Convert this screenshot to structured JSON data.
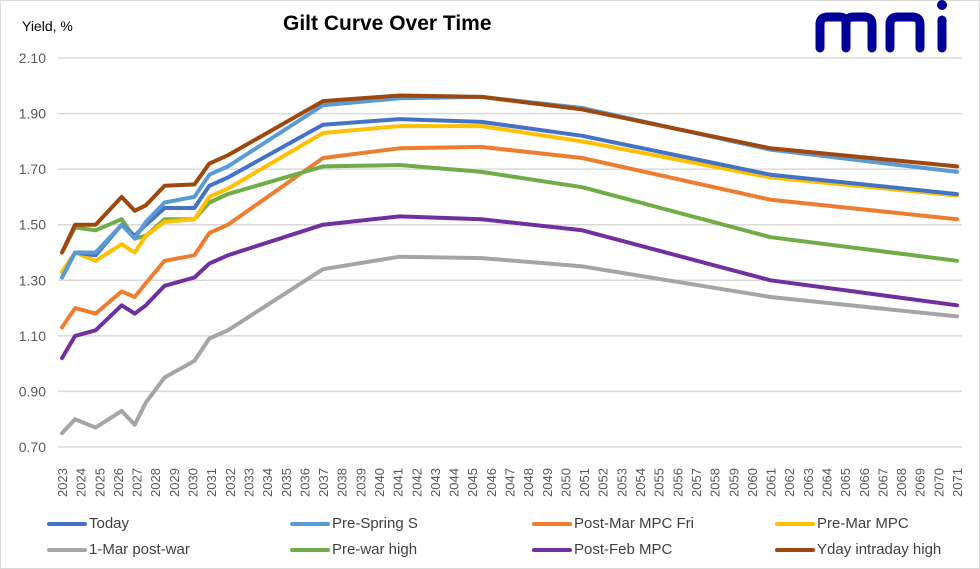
{
  "chart_data": {
    "type": "line",
    "title": "Gilt Curve Over Time",
    "ylabel": "Yield, %",
    "xlabel": "",
    "ylim": [
      0.7,
      2.1
    ],
    "yticks": [
      "2.10",
      "1.90",
      "1.70",
      "1.50",
      "1.30",
      "1.10",
      "0.90",
      "0.70"
    ],
    "ytick_values": [
      2.1,
      1.9,
      1.7,
      1.5,
      1.3,
      1.1,
      0.9,
      0.7
    ],
    "xlim": [
      2023,
      2071
    ],
    "xtick_labels": [
      "2023",
      "2024",
      "2025",
      "2026",
      "2027",
      "2028",
      "2029",
      "2030",
      "2031",
      "2032",
      "2033",
      "2034",
      "2035",
      "2036",
      "2037",
      "2038",
      "2039",
      "2040",
      "2041",
      "2042",
      "2043",
      "2044",
      "2045",
      "2046",
      "2047",
      "2048",
      "2049",
      "2050",
      "2051",
      "2052",
      "2053",
      "2054",
      "2055",
      "2056",
      "2057",
      "2058",
      "2059",
      "2060",
      "2061",
      "2062",
      "2063",
      "2064",
      "2065",
      "2066",
      "2067",
      "2068",
      "2069",
      "2070",
      "2071"
    ],
    "grid": "horizontal",
    "legend_position": "bottom",
    "x": [
      2023.0,
      2023.7,
      2024.8,
      2026.2,
      2026.9,
      2027.5,
      2028.5,
      2030.1,
      2030.9,
      2031.9,
      2037.0,
      2041.1,
      2045.5,
      2050.9,
      2061.0,
      2071.0
    ],
    "series": [
      {
        "name": "Today",
        "color": "#4472C4",
        "values": [
          1.31,
          1.4,
          1.39,
          1.5,
          1.46,
          1.5,
          1.56,
          1.56,
          1.64,
          1.67,
          1.86,
          1.88,
          1.87,
          1.82,
          1.68,
          1.61
        ]
      },
      {
        "name": "Pre-Spring S",
        "color": "#5B9BD5",
        "values": [
          1.31,
          1.4,
          1.4,
          1.5,
          1.45,
          1.51,
          1.58,
          1.6,
          1.68,
          1.71,
          1.93,
          1.955,
          1.96,
          1.92,
          1.77,
          1.69
        ]
      },
      {
        "name": "Post-Mar MPC Fri",
        "color": "#ED7D31",
        "values": [
          1.13,
          1.2,
          1.18,
          1.26,
          1.24,
          1.29,
          1.37,
          1.39,
          1.47,
          1.5,
          1.74,
          1.775,
          1.78,
          1.74,
          1.59,
          1.52
        ]
      },
      {
        "name": "Pre-Mar MPC",
        "color": "#FFC000",
        "values": [
          1.33,
          1.4,
          1.37,
          1.43,
          1.4,
          1.46,
          1.51,
          1.52,
          1.6,
          1.63,
          1.83,
          1.855,
          1.855,
          1.8,
          1.67,
          1.605
        ]
      },
      {
        "name": "1-Mar post-war",
        "color": "#A5A5A5",
        "values": [
          0.75,
          0.8,
          0.77,
          0.83,
          0.78,
          0.86,
          0.95,
          1.01,
          1.09,
          1.12,
          1.34,
          1.385,
          1.38,
          1.35,
          1.24,
          1.17
        ]
      },
      {
        "name": "Pre-war high",
        "color": "#70AD47",
        "values": [
          1.4,
          1.49,
          1.48,
          1.52,
          1.45,
          1.46,
          1.52,
          1.52,
          1.58,
          1.61,
          1.71,
          1.715,
          1.69,
          1.635,
          1.455,
          1.37
        ]
      },
      {
        "name": "Post-Feb MPC",
        "color": "#7030A0",
        "values": [
          1.02,
          1.1,
          1.12,
          1.21,
          1.18,
          1.21,
          1.28,
          1.31,
          1.36,
          1.39,
          1.5,
          1.53,
          1.52,
          1.48,
          1.3,
          1.21
        ]
      },
      {
        "name": "Yday intraday high",
        "color": "#9E480E",
        "values": [
          1.4,
          1.5,
          1.5,
          1.6,
          1.55,
          1.57,
          1.64,
          1.645,
          1.72,
          1.75,
          1.945,
          1.965,
          1.96,
          1.915,
          1.775,
          1.71
        ]
      }
    ]
  },
  "header": {
    "ylabel": "Yield, %",
    "title": "Gilt Curve Over Time",
    "logo_text": "mni",
    "logo_color": "#000099"
  },
  "legend": [
    {
      "label": "Today",
      "color": "#4472C4"
    },
    {
      "label": "Pre-Spring S",
      "color": "#5B9BD5"
    },
    {
      "label": "Post-Mar MPC Fri",
      "color": "#ED7D31"
    },
    {
      "label": "Pre-Mar MPC",
      "color": "#FFC000"
    },
    {
      "label": "1-Mar post-war",
      "color": "#A5A5A5"
    },
    {
      "label": "Pre-war high",
      "color": "#70AD47"
    },
    {
      "label": "Post-Feb MPC",
      "color": "#7030A0"
    },
    {
      "label": "Yday intraday high",
      "color": "#9E480E"
    }
  ]
}
